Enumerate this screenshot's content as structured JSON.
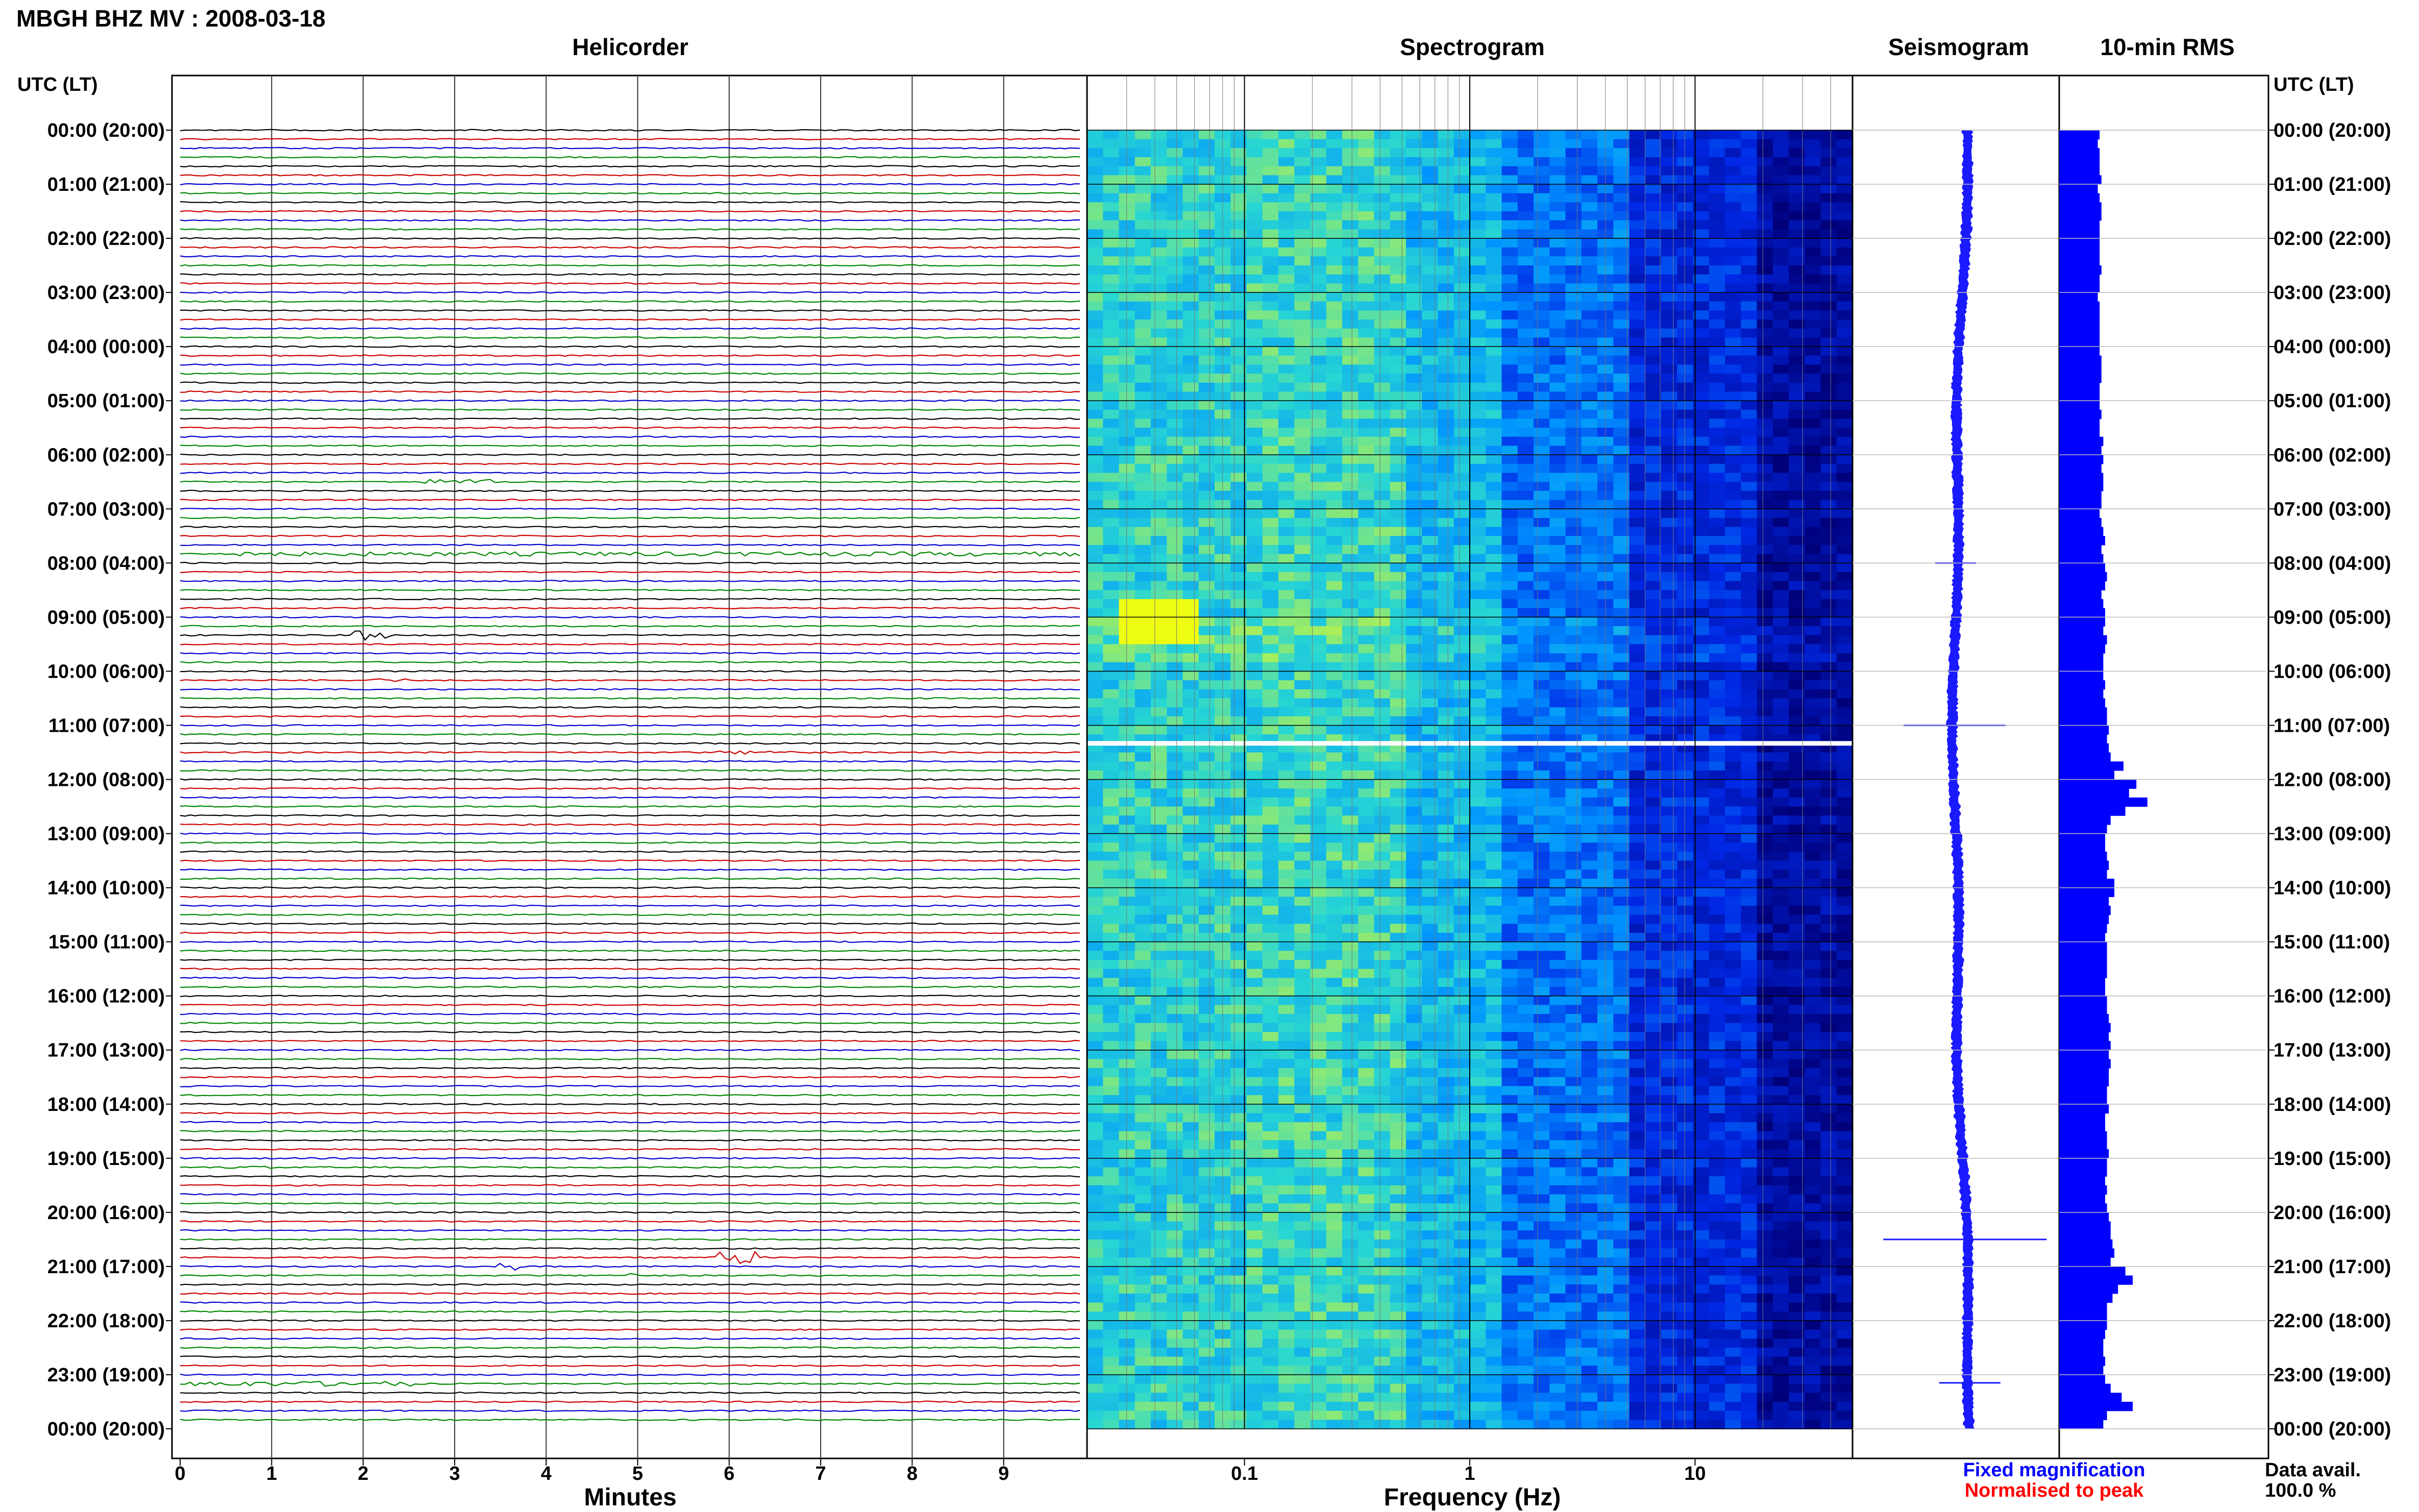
{
  "header": {
    "station_title": "MBGH BHZ MV : 2008-03-18",
    "time_column_label": "UTC (LT)"
  },
  "panels": {
    "helicorder": "Helicorder",
    "spectrogram": "Spectrogram",
    "seismogram": "Seismogram",
    "rms": "10-min RMS"
  },
  "footer": {
    "legend_fixed": "Fixed magnification",
    "legend_normalised": "Normalised to peak",
    "data_avail_label": "Data avail.",
    "data_avail_value": "100.0 %"
  },
  "colors": {
    "trace_cycle": [
      "#000000",
      "#cc0000",
      "#0000cc",
      "#008800"
    ],
    "fixed_magnification": "#0000ff",
    "normalised_to_peak": "#ff0000",
    "seismogram_fill": "#1a1aff",
    "rms_fill": "#0000ff",
    "spectrogram_low": "#00007a",
    "spectrogram_high": "#ffff00"
  },
  "chart_data": [
    {
      "type": "line",
      "title": "Helicorder",
      "xlabel": "Minutes",
      "xlim": [
        0,
        10
      ],
      "x_ticks": [
        "0",
        "1",
        "2",
        "3",
        "4",
        "5",
        "6",
        "7",
        "8",
        "9"
      ],
      "y_tick_labels": [
        "00:00 (20:00)",
        "01:00 (21:00)",
        "02:00 (22:00)",
        "03:00 (23:00)",
        "04:00 (00:00)",
        "05:00 (01:00)",
        "06:00 (02:00)",
        "07:00 (03:00)",
        "08:00 (04:00)",
        "09:00 (05:00)",
        "10:00 (06:00)",
        "11:00 (07:00)",
        "12:00 (08:00)",
        "13:00 (09:00)",
        "14:00 (10:00)",
        "15:00 (11:00)",
        "16:00 (12:00)",
        "17:00 (13:00)",
        "18:00 (14:00)",
        "19:00 (15:00)",
        "20:00 (16:00)",
        "21:00 (17:00)",
        "22:00 (18:00)",
        "23:00 (19:00)",
        "00:00 (20:00)"
      ],
      "rows_per_hour": 6,
      "total_rows": 144,
      "events": [
        {
          "row": 39,
          "minute": 2.7,
          "dur": 0.8,
          "amp": 3
        },
        {
          "row": 47,
          "minute": 0.0,
          "dur": 10.0,
          "amp": 2.5
        },
        {
          "row": 56,
          "minute": 1.9,
          "dur": 0.5,
          "amp": 6
        },
        {
          "row": 61,
          "minute": 2.1,
          "dur": 0.4,
          "amp": 2
        },
        {
          "row": 69,
          "minute": 6.0,
          "dur": 1.0,
          "amp": 2
        },
        {
          "row": 115,
          "minute": 0.5,
          "dur": 0.5,
          "amp": 1.5
        },
        {
          "row": 125,
          "minute": 5.95,
          "dur": 0.6,
          "amp": 8
        },
        {
          "row": 126,
          "minute": 3.55,
          "dur": 0.25,
          "amp": 5
        },
        {
          "row": 127,
          "minute": 4.95,
          "dur": 0.25,
          "amp": 4
        },
        {
          "row": 139,
          "minute": 0.1,
          "dur": 2.5,
          "amp": 3
        }
      ]
    },
    {
      "type": "heatmap",
      "title": "Spectrogram",
      "xlabel": "Frequency (Hz)",
      "x_scale": "log",
      "xlim": [
        0.02,
        50
      ],
      "x_ticks": [
        "0.1",
        "1",
        "10"
      ],
      "gap_time_utc": "11:20"
    },
    {
      "type": "line",
      "title": "Seismogram",
      "description_values": {
        "spike_times_utc": [
          "08:00",
          "11:00",
          "20:30",
          "23:10"
        ]
      }
    },
    {
      "type": "bar",
      "title": "10-min RMS",
      "values": [
        22,
        21,
        22,
        22,
        22,
        23,
        21,
        22,
        23,
        23,
        22,
        22,
        22,
        22,
        22,
        23,
        22,
        22,
        21,
        22,
        22,
        22,
        22,
        22,
        22,
        23,
        23,
        23,
        22,
        22,
        22,
        23,
        22,
        22,
        24,
        23,
        24,
        23,
        24,
        24,
        23,
        23,
        22,
        23,
        24,
        25,
        23,
        24,
        25,
        26,
        25,
        23,
        24,
        25,
        25,
        24,
        26,
        25,
        24,
        24,
        24,
        25,
        24,
        25,
        26,
        26,
        27,
        26,
        27,
        28,
        35,
        30,
        42,
        38,
        48,
        36,
        28,
        26,
        25,
        25,
        26,
        27,
        26,
        30,
        30,
        27,
        28,
        27,
        26,
        25,
        26,
        26,
        26,
        26,
        25,
        25,
        26,
        26,
        27,
        28,
        27,
        28,
        27,
        28,
        27,
        27,
        26,
        26,
        27,
        25,
        25,
        26,
        26,
        27,
        26,
        26,
        25,
        26,
        25,
        26,
        27,
        28,
        28,
        29,
        30,
        28,
        36,
        40,
        32,
        29,
        26,
        26,
        26,
        25,
        24,
        24,
        25,
        24,
        25,
        28,
        34,
        40,
        26,
        24
      ]
    }
  ]
}
